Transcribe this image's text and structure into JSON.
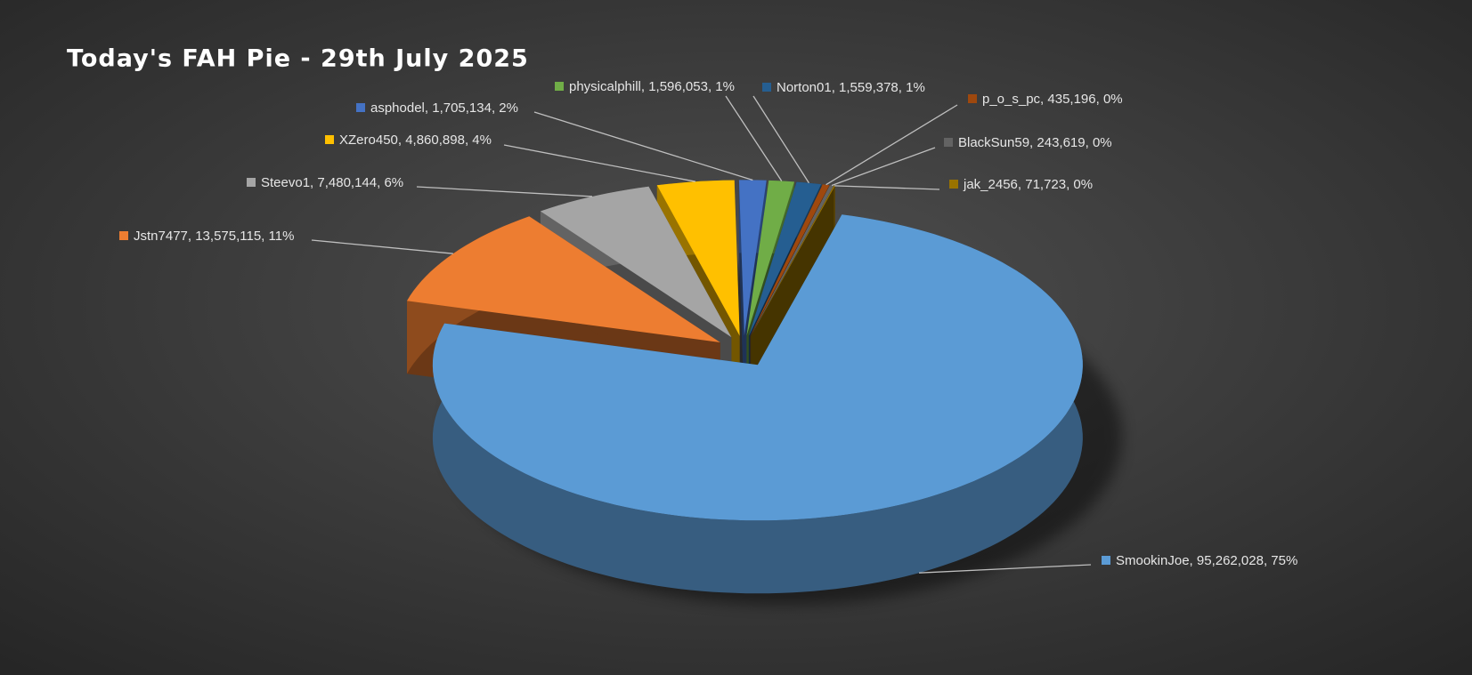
{
  "chart_data": {
    "type": "pie3d",
    "title": "Today's FAH Pie - 29th July 2025",
    "values": [
      95262028,
      13575115,
      7480144,
      4860898,
      1705134,
      1596053,
      1559378,
      435196,
      243619,
      71723
    ],
    "value_labels": [
      "SmookinJoe, 95,262,028, 75%",
      "Jstn7477, 13,575,115, 11%",
      "Steevo1, 7,480,144, 6%",
      "XZero450, 4,860,898, 4%",
      "asphodel, 1,705,134, 2%",
      "physicalphill, 1,596,053, 1%",
      "Norton01, 1,559,378, 1%",
      "p_o_s_pc, 435,196, 0%",
      "BlackSun59, 243,619, 0%",
      "jak_2456, 71,723, 0%"
    ],
    "colors": [
      "#5b9bd5",
      "#ed7d31",
      "#a5a5a5",
      "#ffc000",
      "#4472c4",
      "#70ad47",
      "#255e91",
      "#9e480e",
      "#636363",
      "#997300"
    ]
  }
}
